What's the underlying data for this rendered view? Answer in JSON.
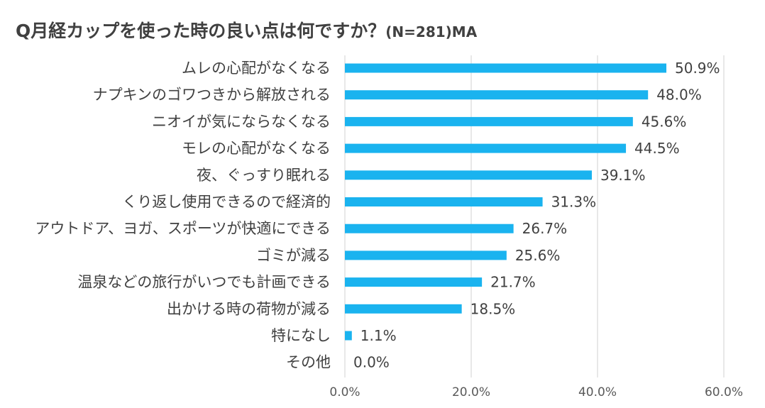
{
  "chart_data": {
    "type": "bar",
    "orientation": "horizontal",
    "title": "Q月経カップを使った時の良い点は何ですか？",
    "subtitle": "(N=281)MA",
    "categories": [
      "ムレの心配がなくなる",
      "ナプキンのゴワつきから解放される",
      "ニオイが気にならなくなる",
      "モレの心配がなくなる",
      "夜、ぐっすり眠れる",
      "くり返し使用できるので経済的",
      "アウトドア、ヨガ、スポーツが快適にできる",
      "ゴミが減る",
      "温泉などの旅行がいつでも計画できる",
      "出かける時の荷物が減る",
      "特になし",
      "その他"
    ],
    "values": [
      50.9,
      48.0,
      45.6,
      44.5,
      39.1,
      31.3,
      26.7,
      25.6,
      21.7,
      18.5,
      1.1,
      0.0
    ],
    "value_labels": [
      "50.9%",
      "48.0%",
      "45.6%",
      "44.5%",
      "39.1%",
      "31.3%",
      "26.7%",
      "25.6%",
      "21.7%",
      "18.5%",
      "1.1%",
      "0.0%"
    ],
    "xlim": [
      0,
      60
    ],
    "xticks": [
      0,
      20,
      40,
      60
    ],
    "xtick_labels": [
      "0.0%",
      "20.0%",
      "40.0%",
      "60.0%"
    ],
    "grid": "vertical",
    "bar_color": "#1AB3EF",
    "grid_color": "#D9D9D9",
    "text_color": "#404040"
  }
}
